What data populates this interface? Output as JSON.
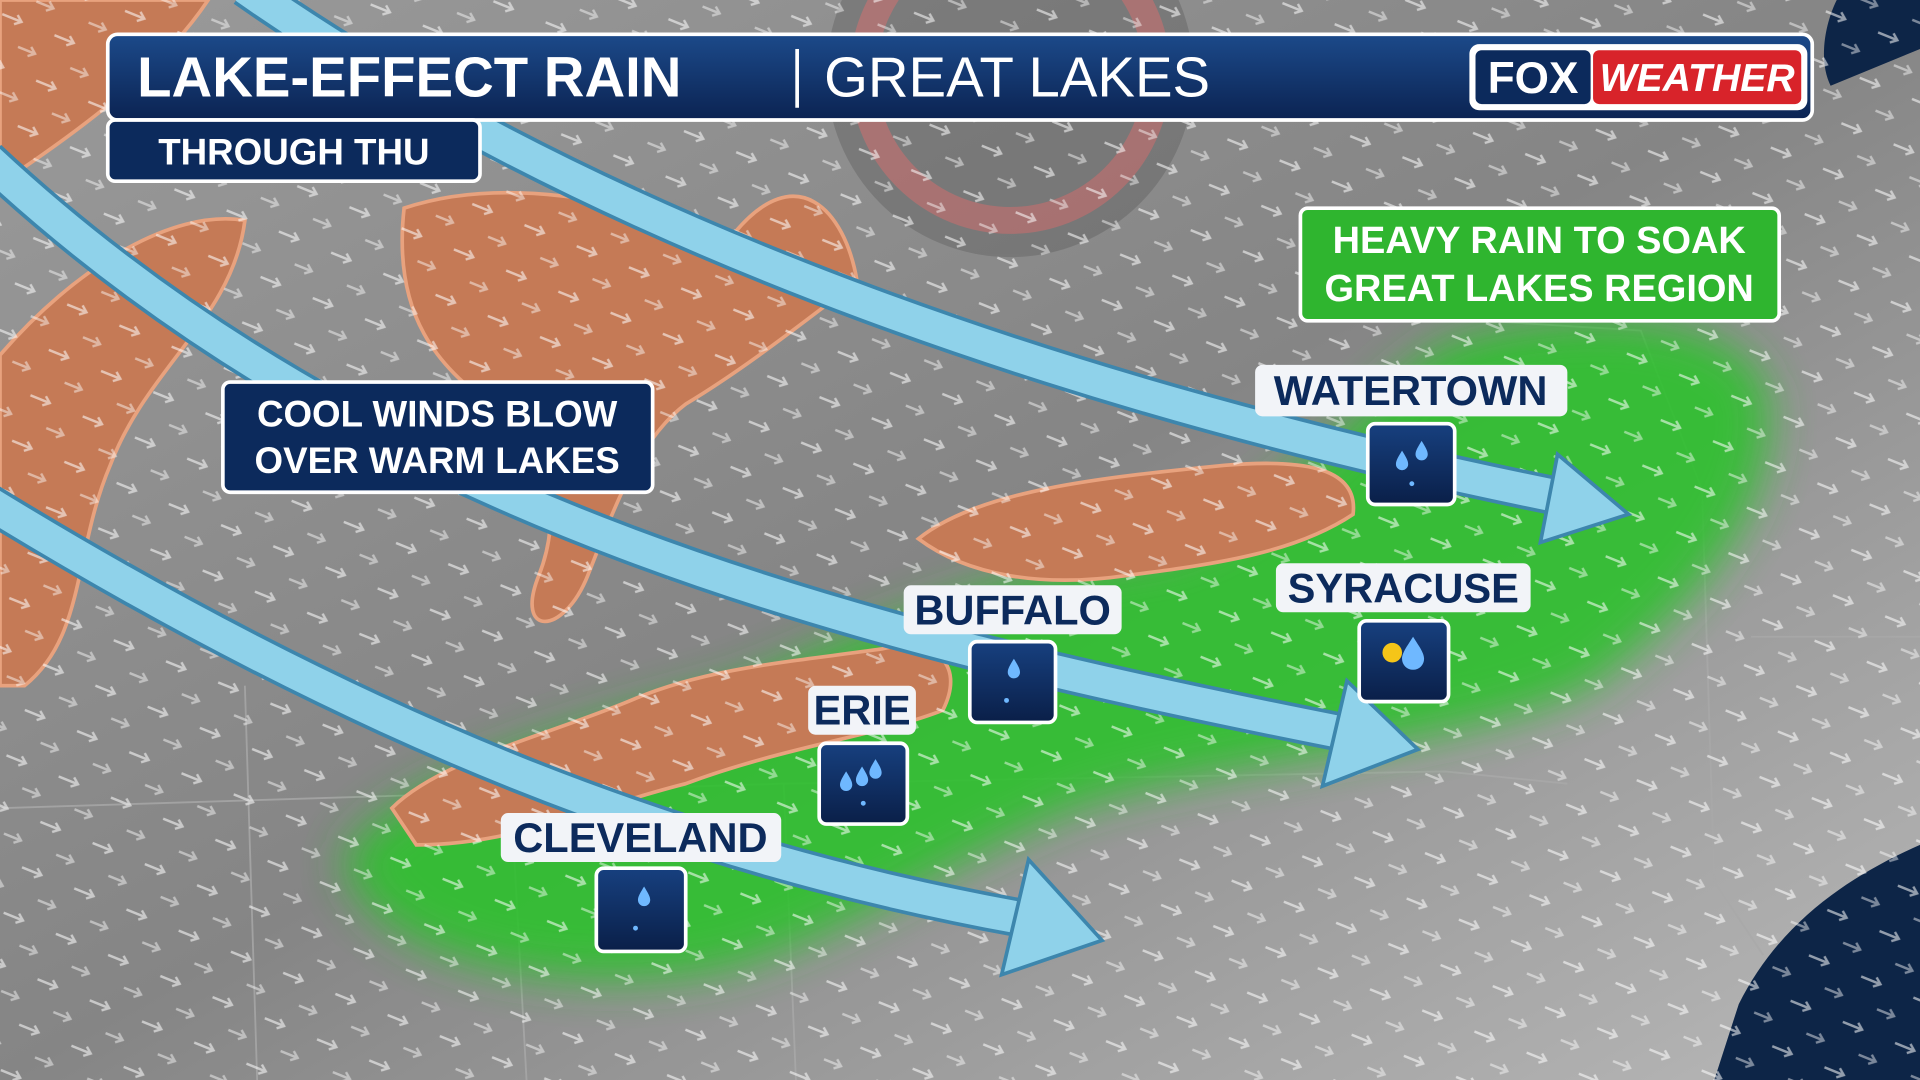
{
  "header": {
    "title": "LAKE-EFFECT RAIN",
    "region": "GREAT LAKES",
    "subtitle": "THROUGH THU",
    "logo": {
      "left": "FOX",
      "right": "WEATHER"
    }
  },
  "callouts": {
    "winds": [
      "COOL WINDS BLOW",
      "OVER WARM LAKES"
    ],
    "rain": [
      "HEAVY RAIN TO SOAK",
      "GREAT LAKES REGION"
    ]
  },
  "cities": [
    {
      "name": "WATERTOWN"
    },
    {
      "name": "SYRACUSE"
    },
    {
      "name": "BUFFALO"
    },
    {
      "name": "ERIE"
    },
    {
      "name": "CLEVELAND"
    }
  ]
}
